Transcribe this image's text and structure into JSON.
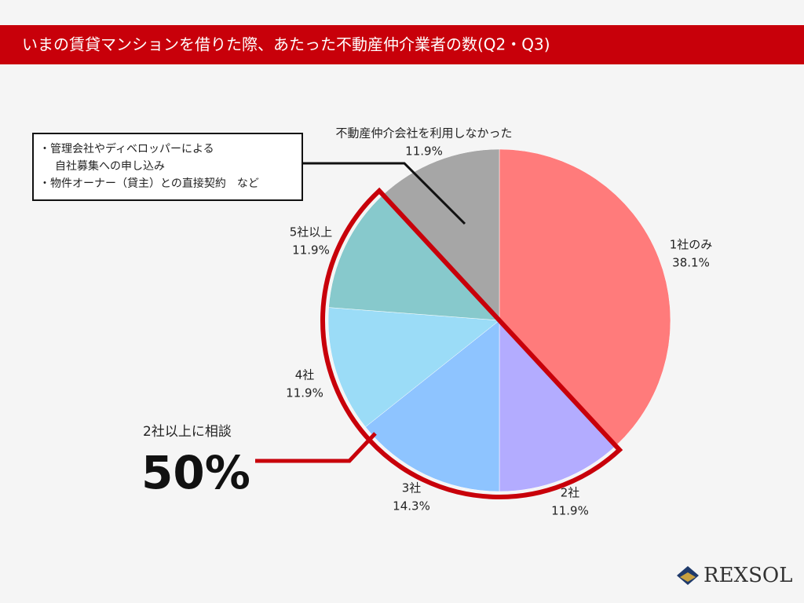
{
  "chart_data": {
    "type": "pie",
    "title": "いまの賃貸マンションを借りた際、あたった不動産仲介業者の数(Q2・Q3)",
    "categories": [
      "1社のみ",
      "2社",
      "3社",
      "4社",
      "5社以上",
      "不動産仲介会社を利用しなかった"
    ],
    "values": [
      38.1,
      11.9,
      14.3,
      11.9,
      11.9,
      11.9
    ],
    "value_labels": [
      "38.1%",
      "11.9%",
      "14.3%",
      "11.9%",
      "11.9%",
      "11.9%"
    ],
    "colors": [
      "#ff7b7b",
      "#b3acff",
      "#8ec4ff",
      "#9bdcf7",
      "#87c9cc",
      "#a6a6a6"
    ],
    "annotation_box": [
      "・管理会社やディベロッパーによる",
      "自社募集への申し込み",
      "・物件オーナー（貸主）との直接契約　など"
    ],
    "callout_text": "2社以上に相談",
    "callout_big": "50%",
    "brand": "REXSOL"
  }
}
